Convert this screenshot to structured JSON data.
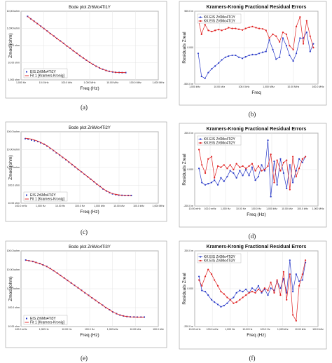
{
  "chart_data": [
    {
      "type": "line",
      "panel": "(a)",
      "title": "Bode plot Zr6Mo4Ti1Y",
      "xlabel": "Freq (Hz)",
      "ylabel": "Zmod (ohm)",
      "x_scale": "log",
      "y_scale": "log",
      "x_ticks": [
        "1,000 Hz",
        "10.0 kHz",
        "100.0 kHz",
        "1.000 MHz",
        "10.00 MHz",
        "100.0 MHz",
        "1,000 MHz"
      ],
      "y_ticks": [
        "10,00 kohm",
        "1,000 kohm",
        "100.0 ohm",
        "10.00 ohm",
        "1,000 ohm"
      ],
      "legend": [
        "EIS Zr6Mo4Ti1Y",
        "Fit 1 [Kramers-Kronig]"
      ],
      "legend_position": "bottom-left",
      "x": [
        1,
        1.4,
        2,
        2.8,
        4,
        5.6,
        8,
        11,
        16,
        22,
        32,
        45,
        63,
        90,
        125,
        180,
        250,
        360,
        500,
        710,
        1000,
        1400,
        2000,
        2800,
        4000,
        5600,
        8000,
        11000,
        16000,
        22000,
        32000
      ],
      "series": [
        {
          "name": "EIS Zr6Mo4Ti1Y",
          "style": "markers",
          "color": "#2b3cc8",
          "values": [
            10000,
            7200,
            5200,
            3800,
            2700,
            1950,
            1400,
            1000,
            720,
            520,
            370,
            270,
            190,
            140,
            100,
            72,
            52,
            38,
            28,
            21,
            16,
            12.5,
            10,
            8.3,
            7.1,
            6.3,
            5.8,
            5.5,
            5.4,
            5.3,
            5.3
          ]
        },
        {
          "name": "Fit 1 [Kramers-Kronig]",
          "style": "line",
          "color": "#e02020",
          "values": [
            10000,
            7200,
            5200,
            3800,
            2700,
            1950,
            1400,
            1000,
            720,
            520,
            370,
            270,
            190,
            140,
            100,
            72,
            52,
            38,
            28,
            21,
            16,
            12.5,
            10,
            8.3,
            7.1,
            6.3,
            5.8,
            5.5,
            5.4,
            5.3,
            5.3
          ]
        }
      ]
    },
    {
      "type": "line",
      "panel": "(b)",
      "title": "Kramers-Kronig Fractional Residual Errors",
      "xlabel": "Freq",
      "ylabel": "Residuals Zreal",
      "x_scale": "log",
      "x_ticks": [
        "1,000 kHz",
        "10.00 kHz",
        "100.0 kHz",
        "1,000 MHz",
        "10.00 MHz",
        "100.0 MHz"
      ],
      "y_ticks": [
        "500.0 m",
        "0.000",
        "-500.0 m"
      ],
      "legend": [
        "KK EIS Zr6Mo4Ti1Y",
        "KK EIS Zr6Mo4Ti1Y"
      ],
      "legend_position": "top-left",
      "x": [
        1000,
        1400,
        2000,
        2800,
        4000,
        5600,
        8000,
        11000,
        16000,
        22000,
        32000,
        45000,
        63000,
        90000,
        125000,
        180000,
        250000,
        360000,
        500000,
        710000,
        1000000,
        1400000,
        2000000,
        2800000,
        4000000,
        5600000,
        8000000,
        11000000,
        16000000,
        22000000,
        32000000,
        45000000,
        63000000,
        90000000,
        125000000
      ],
      "series": [
        {
          "name": "KK EIS Zr6Mo4Ti1Y",
          "color": "#2b3cc8",
          "values": [
            0.05,
            -0.55,
            -0.6,
            -0.45,
            -0.35,
            -0.28,
            -0.2,
            -0.12,
            -0.05,
            -0.02,
            0.0,
            0.0,
            -0.05,
            -0.08,
            -0.04,
            0.0,
            0.02,
            0.02,
            0.05,
            0.08,
            0.1,
            0.4,
            0.15,
            -0.1,
            -0.05,
            0.45,
            0.25,
            0.0,
            -0.15,
            0.05,
            0.45,
            0.45,
            0.6,
            0.1,
            0.3
          ]
        },
        {
          "name": "KK EIS Zr6Mo4Ti1Y",
          "color": "#e02020",
          "values": [
            0.95,
            0.55,
            0.8,
            0.65,
            0.62,
            0.65,
            0.67,
            0.65,
            0.68,
            0.72,
            0.7,
            0.7,
            0.68,
            0.66,
            0.7,
            0.73,
            0.75,
            0.72,
            0.7,
            0.69,
            0.65,
            0.45,
            0.55,
            0.5,
            0.35,
            0.6,
            0.55,
            0.25,
            0.15,
            0.75,
            1.0,
            0.3,
            0.9,
            0.5,
            0.2
          ]
        }
      ]
    },
    {
      "type": "line",
      "panel": "(c)",
      "title": "Bode plot Zr6Mo4Ti2Y",
      "xlabel": "Freq (Hz)",
      "ylabel": "Zmod (ohm)",
      "x_scale": "log",
      "y_scale": "log",
      "x_ticks": [
        "100.0 mHz",
        "1,000 Hz",
        "10.00 Hz",
        "100.0 Hz",
        "1,000 kHz",
        "10.00 kHz",
        "100.0 kHz",
        "1,000 MHz"
      ],
      "y_ticks": [
        "100.0 kohm",
        "10.00 kohm",
        "1,000 kohm",
        "100.0 ohm",
        "10.00 ohm"
      ],
      "legend": [
        "EIS Zr6Mo4Ti2Y",
        "Fit 1 [Kramers-Kronig]"
      ],
      "legend_position": "bottom-left",
      "x": [
        0.4,
        0.55,
        0.8,
        1.1,
        1.6,
        2.2,
        3.2,
        4.5,
        6.3,
        9,
        12.5,
        18,
        25,
        36,
        50,
        71,
        100,
        140,
        200,
        280,
        400,
        560,
        800,
        1100,
        1600,
        2200,
        3200,
        4500,
        6300,
        9000,
        12500,
        18000,
        25000,
        36000,
        50000
      ],
      "series": [
        {
          "name": "EIS Zr6Mo4Ti2Y",
          "style": "markers",
          "color": "#2b3cc8",
          "values": [
            75000,
            70000,
            62000,
            55000,
            50000,
            42000,
            34000,
            26000,
            19000,
            14000,
            10000,
            7300,
            5300,
            3800,
            2700,
            1900,
            1350,
            950,
            680,
            480,
            340,
            240,
            170,
            120,
            85,
            60,
            45,
            36,
            30,
            27,
            25,
            24.5,
            24,
            24,
            24
          ]
        },
        {
          "name": "Fit 1 [Kramers-Kronig]",
          "style": "line",
          "color": "#e02020",
          "values": [
            80000,
            76000,
            70000,
            62000,
            53000,
            44000,
            35000,
            27000,
            20000,
            14500,
            10500,
            7500,
            5400,
            3900,
            2750,
            1950,
            1380,
            970,
            690,
            490,
            345,
            245,
            172,
            121,
            86,
            62,
            46,
            37,
            31,
            28,
            26,
            25,
            24.5,
            24,
            24
          ]
        }
      ]
    },
    {
      "type": "line",
      "panel": "(d)",
      "title": "Kramers-Kronig Fractional Residual Errors",
      "xlabel": "Freq (Hz)",
      "ylabel": "Residuals Zreal",
      "x_scale": "log",
      "x_ticks": [
        "10.00 mHz",
        "100.0 mHz",
        "1,000 Hz",
        "10.00 Hz",
        "100.0 Hz",
        "1,000 kHz",
        "10.00 kHz",
        "100.0 kHz",
        "1,000 MHz"
      ],
      "y_ticks": [
        "200.0 m",
        "0.000",
        "-200.0 m"
      ],
      "legend": [
        "KK EIS Zr6Mo4Ti2Y",
        "KK EIS Zr6Mo4Ti2Y"
      ],
      "legend_position": "top-left",
      "x": [
        0.4,
        0.55,
        0.8,
        1.1,
        1.6,
        2.2,
        3.2,
        4.5,
        6.3,
        9,
        12.5,
        18,
        25,
        36,
        50,
        71,
        100,
        140,
        200,
        280,
        400,
        560,
        800,
        1100,
        1600,
        2200,
        3200,
        4500,
        6300,
        9000,
        12500,
        18000,
        25000,
        36000,
        50000
      ],
      "series": [
        {
          "name": "KK EIS Zr6Mo4Ti2Y",
          "color": "#2b3cc8",
          "values": [
            0.02,
            -0.1,
            -0.12,
            -0.11,
            -0.1,
            -0.08,
            -0.12,
            -0.06,
            -0.09,
            -0.05,
            0.0,
            -0.02,
            -0.06,
            0.0,
            -0.04,
            0.01,
            -0.04,
            0.03,
            -0.08,
            -0.05,
            0.05,
            0.0,
            0.26,
            -0.22,
            0.08,
            -0.12,
            0.1,
            -0.02,
            -0.15,
            0.05,
            -0.1,
            0.0,
            0.1,
            0.07,
            0.12
          ]
        },
        {
          "name": "KK EIS Zr6Mo4Ti2Y",
          "color": "#e02020",
          "values": [
            0.18,
            0.05,
            -0.02,
            0.1,
            0.12,
            -0.06,
            0.04,
            0.03,
            0.05,
            0.02,
            0.05,
            0.01,
            0.06,
            0.03,
            0.04,
            0.02,
            0.04,
            0.06,
            0.0,
            0.04,
            0.0,
            0.01,
            0.04,
            0.14,
            -0.1,
            0.09,
            0.0,
            0.07,
            0.09,
            -0.16,
            0.12,
            -0.05,
            0.02,
            0.1,
            0.12
          ]
        }
      ]
    },
    {
      "type": "line",
      "panel": "(e)",
      "title": "Bode plot Zr6Mo4Ti3Y",
      "xlabel": "Freq (Hz)",
      "ylabel": "Zmod (ohm)",
      "x_scale": "log",
      "y_scale": "log",
      "x_ticks": [
        "100.0 mHz",
        "1,000 Hz",
        "10.00 Hz",
        "100.0 Hz",
        "1,000 kHz",
        "10.00 kHz",
        "100.0 kHz"
      ],
      "y_ticks": [
        "100.0 kohm",
        "10.00 kohm",
        "1,000 kohm",
        "100.0 ohm",
        "10.00 ohm"
      ],
      "legend": [
        "EIS Zr6Mo4Ti3Y",
        "Fit 1 [Kramers-Kronig]"
      ],
      "legend_position": "bottom-left",
      "x": [
        0.4,
        0.55,
        0.8,
        1.1,
        1.6,
        2.2,
        3.2,
        4.5,
        6.3,
        9,
        12.5,
        18,
        25,
        36,
        50,
        71,
        100,
        140,
        200,
        280,
        400,
        560,
        800,
        1100,
        1600,
        2200,
        3200,
        4500,
        6300,
        9000,
        12500,
        18000,
        25000,
        36000,
        50000
      ],
      "series": [
        {
          "name": "EIS Zr6Mo4Ti3Y",
          "style": "markers",
          "color": "#2b3cc8",
          "values": [
            60000,
            55000,
            50000,
            44000,
            38000,
            32000,
            26000,
            20000,
            15000,
            11000,
            8000,
            5800,
            4200,
            3000,
            2200,
            1600,
            1150,
            830,
            600,
            430,
            310,
            225,
            165,
            120,
            90,
            68,
            54,
            45,
            40,
            37,
            35.5,
            35,
            34.5,
            34.5,
            34.5
          ]
        },
        {
          "name": "Fit 1 [Kramers-Kronig]",
          "style": "line",
          "color": "#e02020",
          "values": [
            60000,
            55000,
            50000,
            44000,
            38000,
            32000,
            26000,
            20000,
            15000,
            11000,
            8000,
            5800,
            4200,
            3000,
            2200,
            1600,
            1150,
            830,
            600,
            430,
            310,
            225,
            165,
            120,
            90,
            68,
            54,
            45,
            40,
            37,
            35.5,
            35,
            34.5,
            34.5,
            34.5
          ]
        }
      ]
    },
    {
      "type": "line",
      "panel": "(f)",
      "title": "Kramers-Kronig Fractional Residual Errors",
      "xlabel": "Freq (Hz)",
      "ylabel": "Residuals Zreal",
      "x_scale": "log",
      "x_ticks": [
        "10.00 mHz",
        "100.0 mHz",
        "1,000 Hz",
        "10.00 Hz",
        "100.0 Hz",
        "1,000 kHz",
        "10.00 kHz",
        "100.0 kHz"
      ],
      "y_ticks": [
        "200.0 m",
        "0.000",
        "-200.0 m"
      ],
      "legend": [
        "KK EIS Zr6Mo4Ti3Y",
        "KK EIS Zr6Mo4Ti3Y"
      ],
      "legend_position": "top-left",
      "x": [
        0.4,
        0.55,
        0.8,
        1.1,
        1.6,
        2.2,
        3.2,
        4.5,
        6.3,
        9,
        12.5,
        18,
        25,
        36,
        50,
        71,
        100,
        140,
        200,
        280,
        400,
        560,
        800,
        1100,
        1600,
        2200,
        3200,
        4500,
        6300,
        9000,
        12500,
        18000,
        25000,
        36000,
        50000
      ],
      "series": [
        {
          "name": "KK EIS Zr6Mo4Ti3Y",
          "color": "#2b3cc8",
          "values": [
            0.08,
            -0.04,
            -0.05,
            -0.08,
            -0.12,
            -0.14,
            -0.16,
            -0.18,
            -0.17,
            -0.15,
            -0.12,
            -0.1,
            -0.06,
            -0.04,
            -0.05,
            -0.03,
            -0.06,
            -0.02,
            -0.04,
            0.0,
            -0.06,
            -0.03,
            -0.08,
            -0.02,
            -0.04,
            0.04,
            -0.02,
            0.06,
            -0.06,
            0.22,
            -0.05,
            0.1,
            0.04,
            0.05,
            0.2
          ]
        },
        {
          "name": "KK EIS Zr6Mo4Ti3Y",
          "color": "#e02020",
          "values": [
            0.05,
            0.0,
            0.08,
            0.14,
            0.1,
            0.05,
            0.0,
            -0.05,
            -0.07,
            -0.1,
            -0.12,
            -0.15,
            -0.14,
            -0.12,
            -0.1,
            -0.08,
            -0.06,
            -0.05,
            -0.06,
            -0.03,
            -0.05,
            -0.02,
            -0.04,
            0.03,
            -0.06,
            0.05,
            -0.08,
            0.12,
            -0.12,
            0.1,
            -0.25,
            -0.3,
            0.0,
            0.1,
            0.22
          ]
        }
      ]
    }
  ],
  "captions": [
    "(a)",
    "(b)",
    "(c)",
    "(d)",
    "(e)",
    "(f)"
  ],
  "colors": {
    "blue": "#2b3cc8",
    "red": "#e02020",
    "axis": "#333333",
    "grid": "#e3e3e3"
  }
}
